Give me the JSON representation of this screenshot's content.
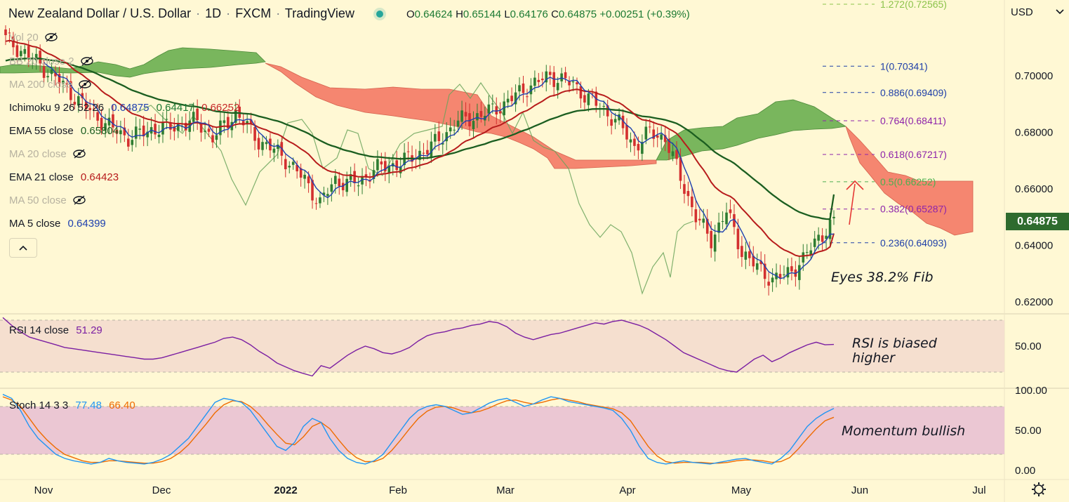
{
  "header": {
    "symbol": "New Zealand Dollar / U.S. Dollar",
    "interval": "1D",
    "exchange": "FXCM",
    "platform": "TradingView",
    "open_label": "O",
    "open": "0.64624",
    "high_label": "H",
    "high": "0.65144",
    "low_label": "L",
    "low": "0.64176",
    "close_label": "C",
    "close": "0.64875",
    "change": "+0.00251 (+0.39%)"
  },
  "currency": "USD",
  "last_price": "0.64875",
  "colors": {
    "background": "#fff8d4",
    "bull": "#2e7d32",
    "bear": "#d32f2f",
    "ema21": "#b71c1c",
    "ema55": "#1b5e20",
    "ma5": "#1e40af",
    "rsi": "#7b1fa2",
    "stoch_k": "#2196f3",
    "stoch_d": "#ef6c00",
    "fib": "#1e3fa8",
    "cloud_bull": "#66b04f",
    "cloud_bear": "#f47a64"
  },
  "legend": {
    "vol": "Vol 20",
    "bb": "BB 20 close 2",
    "ma200": "MA 200 close",
    "ichimoku_label": "Ichimoku 9 26 52 26",
    "ichimoku_v1": "0.64875",
    "ichimoku_v2": "0.64417",
    "ichimoku_v3": "0.66252",
    "ema55_label": "EMA 55 close",
    "ema55_value": "0.65804",
    "ma20": "MA 20 close",
    "ema21_label": "EMA 21 close",
    "ema21_value": "0.64423",
    "ma50": "MA 50 close",
    "ma5_label": "MA 5 close",
    "ma5_value": "0.64399"
  },
  "rsi_legend": {
    "label": "RSI 14 close",
    "value": "51.29"
  },
  "stoch_legend": {
    "label": "Stoch 14 3 3",
    "k": "77.48",
    "d": "66.40"
  },
  "annotations": {
    "fib_note": "Eyes 38.2% Fib",
    "rsi_note_1": "RSI is biased",
    "rsi_note_2": "higher",
    "stoch_note": "Momentum bullish"
  },
  "chart_data": {
    "type": "candlestick",
    "title": "New Zealand Dollar / U.S. Dollar · 1D · FXCM",
    "ylabel": "USD",
    "ylim": [
      0.615,
      0.725
    ],
    "price_ticks": [
      "0.70000",
      "0.68000",
      "0.66000",
      "0.64000",
      "0.62000"
    ],
    "time_labels": [
      "Nov",
      "Dec",
      "2022",
      "Feb",
      "Mar",
      "Apr",
      "May",
      "Jun",
      "Jul"
    ],
    "ema21_end": 0.64423,
    "ema55_end": 0.65804,
    "ma5_end": 0.64399,
    "fib_levels": [
      {
        "ratio": "1.272",
        "price": 0.72565,
        "text": "1.272(0.72565)"
      },
      {
        "ratio": "1",
        "price": 0.70341,
        "text": "1(0.70341)"
      },
      {
        "ratio": "0.886",
        "price": 0.69409,
        "text": "0.886(0.69409)"
      },
      {
        "ratio": "0.764",
        "price": 0.68411,
        "text": "0.764(0.68411)"
      },
      {
        "ratio": "0.618",
        "price": 0.67217,
        "text": "0.618(0.67217)"
      },
      {
        "ratio": "0.5",
        "price": 0.66252,
        "text": "0.5(0.66252)"
      },
      {
        "ratio": "0.382",
        "price": 0.65287,
        "text": "0.382(0.65287)"
      },
      {
        "ratio": "0.236",
        "price": 0.64093,
        "text": "0.236(0.64093)"
      }
    ],
    "rsi": {
      "last": 51.29,
      "band": [
        70,
        30
      ],
      "ticks": [
        "50.00"
      ],
      "values": [
        72,
        66,
        61,
        57,
        55,
        53,
        51,
        49,
        48,
        47,
        46,
        45,
        44,
        43,
        42,
        41,
        40,
        40,
        41,
        43,
        45,
        47,
        49,
        51,
        53,
        56,
        57,
        55,
        51,
        46,
        42,
        37,
        34,
        31,
        29,
        27,
        35,
        33,
        38,
        43,
        47,
        50,
        48,
        45,
        44,
        46,
        49,
        54,
        58,
        60,
        61,
        63,
        64,
        66,
        67,
        69,
        68,
        65,
        60,
        57,
        55,
        57,
        59,
        60,
        62,
        64,
        66,
        68,
        67,
        69,
        70,
        68,
        66,
        63,
        59,
        55,
        50,
        45,
        42,
        39,
        36,
        33,
        31,
        30,
        35,
        40,
        43,
        38,
        41,
        45,
        48,
        51,
        53,
        51,
        51.29
      ]
    },
    "stochastic": {
      "k_last": 77.48,
      "d_last": 66.4,
      "band": [
        80,
        20
      ],
      "ticks": [
        "100.00",
        "50.00",
        "0.00"
      ],
      "k_values": [
        95,
        90,
        75,
        55,
        40,
        30,
        20,
        15,
        12,
        10,
        8,
        10,
        15,
        12,
        10,
        9,
        8,
        10,
        14,
        20,
        30,
        40,
        55,
        70,
        85,
        90,
        88,
        85,
        75,
        60,
        45,
        30,
        25,
        35,
        55,
        65,
        60,
        40,
        25,
        15,
        10,
        8,
        12,
        20,
        35,
        50,
        65,
        75,
        80,
        82,
        80,
        75,
        70,
        72,
        78,
        84,
        88,
        90,
        85,
        80,
        83,
        88,
        92,
        90,
        86,
        84,
        82,
        80,
        78,
        75,
        65,
        50,
        30,
        15,
        10,
        8,
        10,
        12,
        10,
        9,
        8,
        10,
        12,
        14,
        15,
        12,
        10,
        8,
        15,
        25,
        40,
        55,
        65,
        72,
        77.48
      ],
      "d_values": [
        92,
        88,
        80,
        65,
        50,
        38,
        28,
        20,
        16,
        12,
        10,
        10,
        12,
        12,
        11,
        10,
        9,
        9,
        11,
        15,
        22,
        32,
        45,
        58,
        72,
        82,
        87,
        86,
        80,
        70,
        57,
        45,
        34,
        32,
        42,
        55,
        60,
        52,
        38,
        25,
        16,
        11,
        11,
        15,
        25,
        38,
        52,
        65,
        74,
        79,
        80,
        78,
        74,
        72,
        74,
        78,
        83,
        87,
        88,
        85,
        83,
        85,
        88,
        90,
        88,
        86,
        83,
        81,
        79,
        77,
        72,
        62,
        46,
        30,
        18,
        11,
        9,
        10,
        10,
        10,
        9,
        9,
        10,
        12,
        13,
        13,
        12,
        10,
        11,
        16,
        27,
        40,
        52,
        62,
        66.4
      ]
    }
  }
}
